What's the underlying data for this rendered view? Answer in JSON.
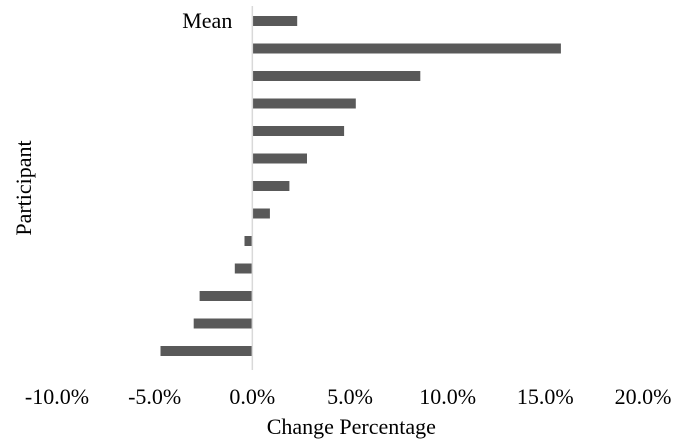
{
  "chart_data": {
    "type": "bar",
    "orientation": "horizontal",
    "categories": [
      "Mean",
      "",
      "",
      "",
      "",
      "",
      "",
      "",
      "",
      "",
      "",
      "",
      ""
    ],
    "values": [
      2.3,
      15.8,
      8.6,
      5.3,
      4.7,
      2.8,
      1.9,
      0.9,
      -0.4,
      -0.9,
      -2.7,
      -3.0,
      -4.7
    ],
    "xlabel": "Change Percentage",
    "ylabel": "Participant",
    "xlim": [
      -10,
      20
    ],
    "xticks": [
      "-10.0%",
      "-5.0%",
      "0.0%",
      "5.0%",
      "10.0%",
      "15.0%",
      "20.0%"
    ],
    "xtick_values": [
      -10,
      -5,
      0,
      5,
      10,
      15,
      20
    ],
    "grid": false,
    "bar_color": "#595959",
    "axis_color": "#d9d9d9"
  }
}
